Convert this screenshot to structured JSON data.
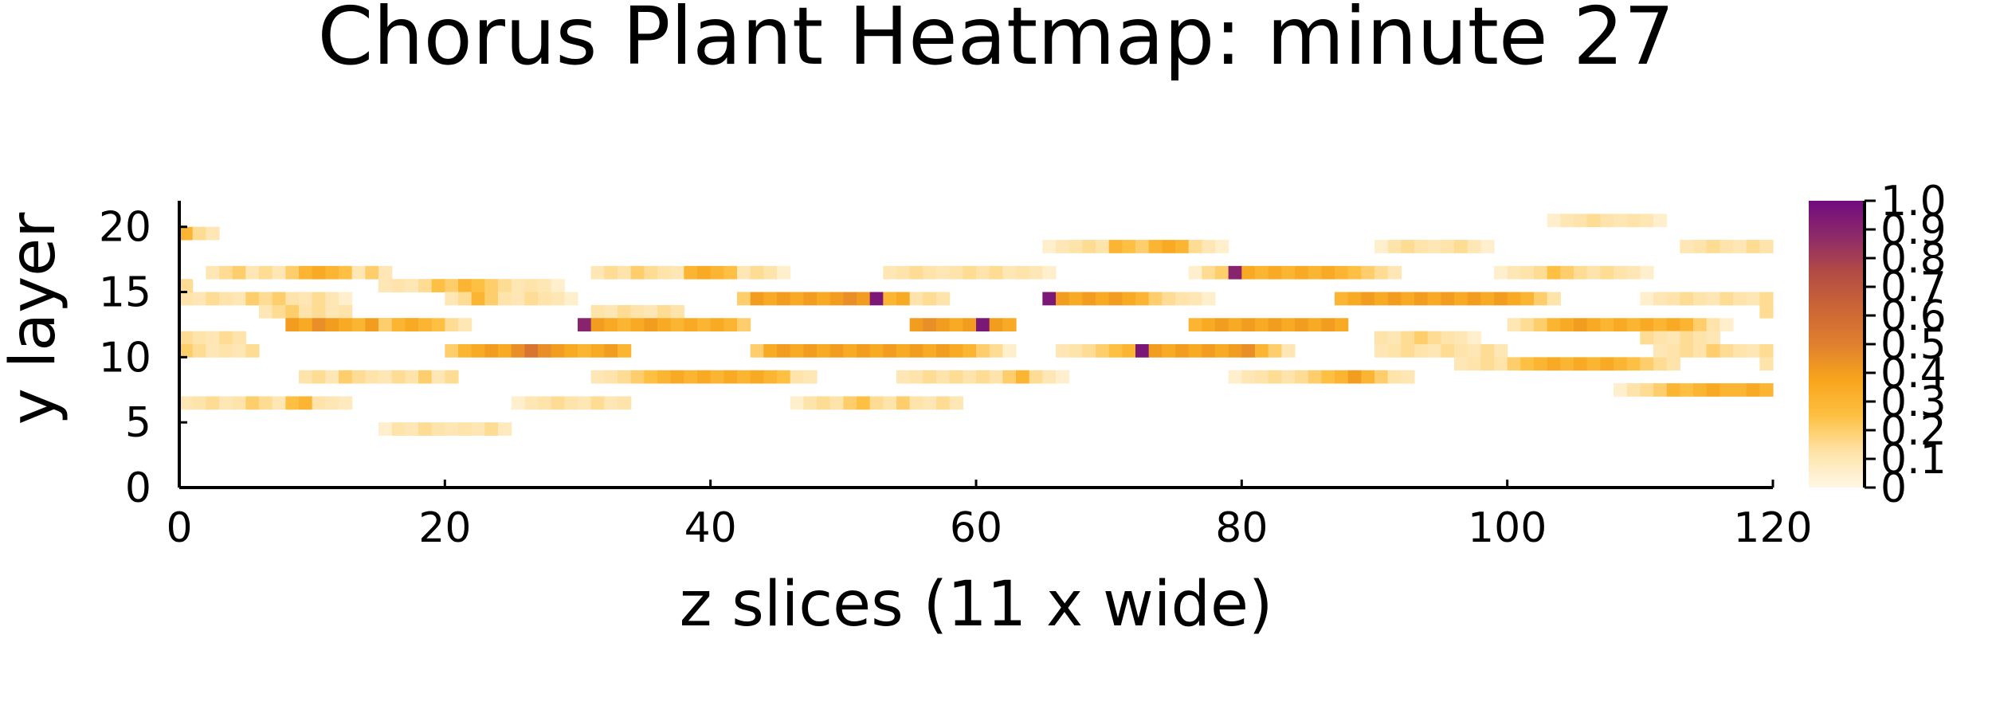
{
  "chart_data": {
    "type": "heatmap",
    "title": "Chorus Plant Heatmap: minute 27",
    "xlabel": "z slices (11 x wide)",
    "ylabel": "y layer",
    "xlim": [
      0,
      120
    ],
    "ylim": [
      0,
      22
    ],
    "x_ticks": [
      0,
      20,
      40,
      60,
      80,
      100,
      120
    ],
    "y_ticks": [
      0,
      5,
      10,
      15,
      20
    ],
    "colorbar": {
      "range": [
        0,
        1
      ],
      "ticks": [
        0,
        0.1,
        0.2,
        0.3,
        0.4,
        0.5,
        0.6,
        0.7,
        0.8,
        0.9,
        1.0
      ],
      "tick_labels": [
        "0",
        "0.1",
        "0.2",
        "0.3",
        "0.4",
        "0.5",
        "0.6",
        "0.7",
        "0.8",
        "0.9",
        "1.0"
      ],
      "colormap": [
        "#fff7e6",
        "#fee3a8",
        "#fdc043",
        "#f8a51c",
        "#e07f2f",
        "#cc6535",
        "#b24c45",
        "#8e2a6a",
        "#6f0b7e"
      ]
    },
    "cells": [
      {
        "y": 19,
        "x0": 0,
        "x1": 3,
        "v": [
          0.3,
          0.15,
          0.1
        ]
      },
      {
        "y": 16,
        "x0": 2,
        "x1": 16,
        "v": [
          0.1,
          0.15,
          0.2,
          0.1,
          0.15,
          0.1,
          0.2,
          0.3,
          0.35,
          0.3,
          0.25,
          0.1,
          0.2,
          0.1
        ]
      },
      {
        "y": 14,
        "x0": 0,
        "x1": 13,
        "v": [
          0.12,
          0.1,
          0.15,
          0.12,
          0.1,
          0.2,
          0.15,
          0.2,
          0.12,
          0.1,
          0.15,
          0.1,
          0.05
        ]
      },
      {
        "y": 15,
        "x0": 0,
        "x1": 1,
        "v": [
          0.15
        ]
      },
      {
        "y": 13,
        "x0": 6,
        "x1": 13,
        "v": [
          0.1,
          0.15,
          0.2,
          0.12,
          0.15,
          0.1,
          0.12
        ]
      },
      {
        "y": 12,
        "x0": 8,
        "x1": 18,
        "v": [
          0.4,
          0.35,
          0.45,
          0.4,
          0.35,
          0.3,
          0.4,
          0.45,
          0.3,
          0.35
        ]
      },
      {
        "y": 11,
        "x0": 0,
        "x1": 5,
        "v": [
          0.15,
          0.12,
          0.1,
          0.15,
          0.12
        ]
      },
      {
        "y": 10,
        "x0": 0,
        "x1": 6,
        "v": [
          0.2,
          0.15,
          0.1,
          0.12,
          0.1,
          0.15
        ]
      },
      {
        "y": 8,
        "x0": 9,
        "x1": 21,
        "v": [
          0.12,
          0.15,
          0.1,
          0.2,
          0.15,
          0.12,
          0.1,
          0.15,
          0.12,
          0.2,
          0.1,
          0.15
        ]
      },
      {
        "y": 6,
        "x0": 0,
        "x1": 13,
        "v": [
          0.1,
          0.12,
          0.15,
          0.1,
          0.12,
          0.2,
          0.15,
          0.1,
          0.25,
          0.3,
          0.12,
          0.1,
          0.08
        ]
      },
      {
        "y": 4,
        "x0": 15,
        "x1": 25,
        "v": [
          0.05,
          0.12,
          0.1,
          0.15,
          0.12,
          0.1,
          0.12,
          0.1,
          0.15,
          0.08
        ]
      },
      {
        "y": 15,
        "x0": 15,
        "x1": 29,
        "v": [
          0.1,
          0.12,
          0.1,
          0.15,
          0.25,
          0.2,
          0.3,
          0.25,
          0.2,
          0.15,
          0.1,
          0.12,
          0.1,
          0.05
        ]
      },
      {
        "y": 14,
        "x0": 20,
        "x1": 30,
        "v": [
          0.1,
          0.15,
          0.3,
          0.2,
          0.12,
          0.1,
          0.15,
          0.12,
          0.1,
          0.05
        ]
      },
      {
        "y": 12,
        "x0": 15,
        "x1": 22,
        "v": [
          0.2,
          0.3,
          0.35,
          0.3,
          0.25,
          0.15,
          0.1
        ]
      },
      {
        "y": 10,
        "x0": 20,
        "x1": 34,
        "v": [
          0.2,
          0.3,
          0.35,
          0.4,
          0.35,
          0.45,
          0.55,
          0.45,
          0.4,
          0.35,
          0.3,
          0.35,
          0.4,
          0.3
        ]
      },
      {
        "y": 6,
        "x0": 25,
        "x1": 34,
        "v": [
          0.05,
          0.1,
          0.12,
          0.15,
          0.12,
          0.1,
          0.15,
          0.1,
          0.12
        ]
      },
      {
        "y": 16,
        "x0": 31,
        "x1": 46,
        "v": [
          0.1,
          0.15,
          0.12,
          0.2,
          0.15,
          0.12,
          0.1,
          0.3,
          0.35,
          0.3,
          0.25,
          0.1,
          0.15,
          0.12,
          0.05
        ]
      },
      {
        "y": 13,
        "x0": 31,
        "x1": 38,
        "v": [
          0.12,
          0.1,
          0.15,
          0.12,
          0.1,
          0.15,
          0.12
        ]
      },
      {
        "y": 12,
        "x0": 30,
        "x1": 43,
        "v": [
          0.9,
          0.4,
          0.35,
          0.3,
          0.35,
          0.4,
          0.35,
          0.3,
          0.35,
          0.3,
          0.35,
          0.3,
          0.2
        ]
      },
      {
        "y": 8,
        "x0": 31,
        "x1": 48,
        "v": [
          0.1,
          0.12,
          0.15,
          0.2,
          0.25,
          0.3,
          0.35,
          0.3,
          0.35,
          0.3,
          0.35,
          0.3,
          0.35,
          0.3,
          0.25,
          0.12,
          0.1
        ]
      },
      {
        "y": 14,
        "x0": 42,
        "x1": 58,
        "v": [
          0.2,
          0.4,
          0.35,
          0.4,
          0.35,
          0.4,
          0.35,
          0.4,
          0.45,
          0.4,
          0.95,
          0.3,
          0.35,
          0.12,
          0.15,
          0.12
        ]
      },
      {
        "y": 10,
        "x0": 43,
        "x1": 63,
        "v": [
          0.2,
          0.35,
          0.4,
          0.35,
          0.4,
          0.35,
          0.4,
          0.35,
          0.4,
          0.35,
          0.4,
          0.35,
          0.4,
          0.35,
          0.4,
          0.35,
          0.3,
          0.2,
          0.15,
          0.05
        ]
      },
      {
        "y": 6,
        "x0": 46,
        "x1": 59,
        "v": [
          0.05,
          0.12,
          0.15,
          0.12,
          0.2,
          0.25,
          0.15,
          0.12,
          0.2,
          0.12,
          0.1,
          0.15,
          0.1
        ]
      },
      {
        "y": 16,
        "x0": 53,
        "x1": 66,
        "v": [
          0.1,
          0.12,
          0.15,
          0.12,
          0.1,
          0.12,
          0.15,
          0.12,
          0.15,
          0.1,
          0.12,
          0.1,
          0.05
        ]
      },
      {
        "y": 12,
        "x0": 55,
        "x1": 63,
        "v": [
          0.4,
          0.45,
          0.4,
          0.35,
          0.4,
          0.95,
          0.4,
          0.35
        ]
      },
      {
        "y": 8,
        "x0": 54,
        "x1": 67,
        "v": [
          0.1,
          0.12,
          0.15,
          0.12,
          0.15,
          0.12,
          0.15,
          0.12,
          0.2,
          0.3,
          0.15,
          0.1,
          0.05
        ]
      },
      {
        "y": 14,
        "x0": 65,
        "x1": 78,
        "v": [
          0.95,
          0.4,
          0.35,
          0.4,
          0.35,
          0.4,
          0.35,
          0.3,
          0.2,
          0.15,
          0.12,
          0.1,
          0.05
        ]
      },
      {
        "y": 18,
        "x0": 65,
        "x1": 79,
        "v": [
          0.05,
          0.1,
          0.12,
          0.15,
          0.12,
          0.3,
          0.25,
          0.2,
          0.3,
          0.35,
          0.3,
          0.15,
          0.1,
          0.05
        ]
      },
      {
        "y": 10,
        "x0": 66,
        "x1": 84,
        "v": [
          0.1,
          0.12,
          0.15,
          0.2,
          0.25,
          0.3,
          0.95,
          0.4,
          0.35,
          0.4,
          0.35,
          0.4,
          0.35,
          0.4,
          0.45,
          0.3,
          0.2,
          0.1
        ]
      },
      {
        "y": 12,
        "x0": 76,
        "x1": 88,
        "v": [
          0.3,
          0.35,
          0.4,
          0.35,
          0.4,
          0.35,
          0.4,
          0.35,
          0.4,
          0.35,
          0.4,
          0.35
        ]
      },
      {
        "y": 16,
        "x0": 76,
        "x1": 92,
        "v": [
          0.05,
          0.15,
          0.2,
          0.9,
          0.35,
          0.3,
          0.35,
          0.3,
          0.35,
          0.3,
          0.35,
          0.3,
          0.25,
          0.2,
          0.15,
          0.1
        ]
      },
      {
        "y": 8,
        "x0": 79,
        "x1": 93,
        "v": [
          0.05,
          0.1,
          0.12,
          0.15,
          0.12,
          0.15,
          0.2,
          0.25,
          0.3,
          0.4,
          0.3,
          0.2,
          0.12,
          0.1
        ]
      },
      {
        "y": 14,
        "x0": 87,
        "x1": 104,
        "v": [
          0.3,
          0.35,
          0.4,
          0.35,
          0.4,
          0.35,
          0.4,
          0.35,
          0.4,
          0.35,
          0.4,
          0.35,
          0.4,
          0.35,
          0.3,
          0.2,
          0.12
        ]
      },
      {
        "y": 11,
        "x0": 90,
        "x1": 98,
        "v": [
          0.12,
          0.1,
          0.15,
          0.2,
          0.15,
          0.12,
          0.1,
          0.05
        ]
      },
      {
        "y": 10,
        "x0": 90,
        "x1": 100,
        "v": [
          0.1,
          0.12,
          0.15,
          0.12,
          0.1,
          0.15,
          0.12,
          0.1,
          0.15,
          0.1
        ]
      },
      {
        "y": 18,
        "x0": 90,
        "x1": 99,
        "v": [
          0.05,
          0.12,
          0.15,
          0.12,
          0.1,
          0.12,
          0.15,
          0.1,
          0.05
        ]
      },
      {
        "y": 9,
        "x0": 96,
        "x1": 113,
        "v": [
          0.1,
          0.12,
          0.15,
          0.12,
          0.2,
          0.25,
          0.3,
          0.35,
          0.3,
          0.35,
          0.3,
          0.35,
          0.3,
          0.25,
          0.2,
          0.15,
          0.12
        ]
      },
      {
        "y": 12,
        "x0": 100,
        "x1": 117,
        "v": [
          0.1,
          0.15,
          0.2,
          0.3,
          0.35,
          0.4,
          0.35,
          0.3,
          0.35,
          0.3,
          0.35,
          0.3,
          0.35,
          0.3,
          0.2,
          0.12,
          0.05
        ]
      },
      {
        "y": 16,
        "x0": 99,
        "x1": 111,
        "v": [
          0.05,
          0.1,
          0.12,
          0.15,
          0.25,
          0.2,
          0.15,
          0.12,
          0.15,
          0.12,
          0.1,
          0.05
        ]
      },
      {
        "y": 14,
        "x0": 110,
        "x1": 120,
        "v": [
          0.05,
          0.1,
          0.12,
          0.15,
          0.12,
          0.1,
          0.15,
          0.12,
          0.1,
          0.15
        ]
      },
      {
        "y": 11,
        "x0": 110,
        "x1": 116,
        "v": [
          0.15,
          0.12,
          0.1,
          0.15,
          0.12,
          0.1
        ]
      },
      {
        "y": 10,
        "x0": 111,
        "x1": 120,
        "v": [
          0.1,
          0.12,
          0.15,
          0.12,
          0.2,
          0.15,
          0.12,
          0.1,
          0.15
        ]
      },
      {
        "y": 7,
        "x0": 108,
        "x1": 120,
        "v": [
          0.05,
          0.12,
          0.15,
          0.2,
          0.3,
          0.25,
          0.3,
          0.35,
          0.3,
          0.3,
          0.35,
          0.3
        ]
      },
      {
        "y": 18,
        "x0": 113,
        "x1": 120,
        "v": [
          0.1,
          0.12,
          0.15,
          0.12,
          0.1,
          0.15,
          0.12
        ]
      },
      {
        "y": 20,
        "x0": 103,
        "x1": 112,
        "v": [
          0.05,
          0.1,
          0.12,
          0.15,
          0.12,
          0.1,
          0.12,
          0.1,
          0.05
        ]
      },
      {
        "y": 13,
        "x0": 119,
        "x1": 120,
        "v": [
          0.15
        ]
      },
      {
        "y": 9,
        "x0": 119,
        "x1": 120,
        "v": [
          0.12
        ]
      }
    ]
  }
}
